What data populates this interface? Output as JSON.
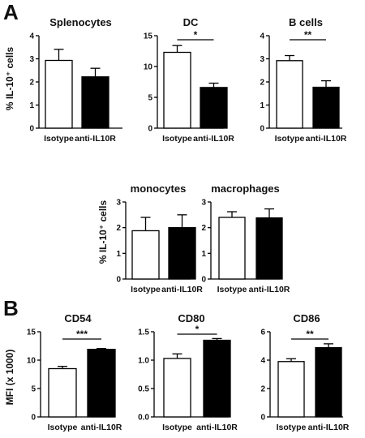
{
  "panel_labels": [
    "A",
    "B"
  ],
  "ylabels": [
    "% IL-10⁺ cells",
    "% IL-10⁺ cells",
    "MFI (x 1000)"
  ],
  "chart_data": [
    {
      "type": "bar",
      "title": "Splenocytes",
      "categories": [
        "Isotype",
        "anti-IL10R"
      ],
      "values": [
        2.93,
        2.22
      ],
      "errors": [
        0.48,
        0.37
      ],
      "ylim": [
        0,
        4
      ],
      "yticks": [
        "0",
        "1",
        "2",
        "3",
        "4"
      ],
      "fills": [
        "#ffffff",
        "#000000"
      ],
      "significance": ""
    },
    {
      "type": "bar",
      "title": "DC",
      "categories": [
        "Isotype",
        "anti-IL10R"
      ],
      "values": [
        12.3,
        6.6
      ],
      "errors": [
        1.1,
        0.7
      ],
      "ylim": [
        0,
        15
      ],
      "yticks": [
        "0",
        "5",
        "10",
        "15"
      ],
      "fills": [
        "#ffffff",
        "#000000"
      ],
      "significance": "*"
    },
    {
      "type": "bar",
      "title": "B cells",
      "categories": [
        "Isotype",
        "anti-IL10R"
      ],
      "values": [
        2.92,
        1.77
      ],
      "errors": [
        0.22,
        0.28
      ],
      "ylim": [
        0,
        4
      ],
      "yticks": [
        "0",
        "1",
        "2",
        "3",
        "4"
      ],
      "fills": [
        "#ffffff",
        "#000000"
      ],
      "significance": "**"
    },
    {
      "type": "bar",
      "title": "monocytes",
      "categories": [
        "Isotype",
        "anti-IL10R"
      ],
      "values": [
        1.88,
        2.0
      ],
      "errors": [
        0.52,
        0.5
      ],
      "ylim": [
        0,
        3
      ],
      "yticks": [
        "0",
        "1",
        "2",
        "3"
      ],
      "fills": [
        "#ffffff",
        "#000000"
      ],
      "significance": ""
    },
    {
      "type": "bar",
      "title": "macrophages",
      "categories": [
        "Isotype",
        "anti-IL10R"
      ],
      "values": [
        2.4,
        2.38
      ],
      "errors": [
        0.22,
        0.35
      ],
      "ylim": [
        0,
        3
      ],
      "yticks": [
        "0",
        "1",
        "2",
        "3"
      ],
      "fills": [
        "#ffffff",
        "#000000"
      ],
      "significance": ""
    },
    {
      "type": "bar",
      "title": "CD54",
      "categories": [
        "Isotype",
        "anti-IL10R"
      ],
      "values": [
        8.5,
        11.9
      ],
      "errors": [
        0.4,
        0.15
      ],
      "ylim": [
        0,
        15
      ],
      "yticks": [
        "0",
        "5",
        "10",
        "15"
      ],
      "fills": [
        "#ffffff",
        "#000000"
      ],
      "significance": "***"
    },
    {
      "type": "bar",
      "title": "CD80",
      "categories": [
        "Isotype",
        "anti-IL10R"
      ],
      "values": [
        1.03,
        1.35
      ],
      "errors": [
        0.08,
        0.03
      ],
      "ylim": [
        0,
        1.5
      ],
      "yticks": [
        "0.0",
        "0.5",
        "1.0",
        "1.5"
      ],
      "fills": [
        "#ffffff",
        "#000000"
      ],
      "significance": "*"
    },
    {
      "type": "bar",
      "title": "CD86",
      "categories": [
        "Isotype",
        "anti-IL10R"
      ],
      "values": [
        3.9,
        4.88
      ],
      "errors": [
        0.2,
        0.27
      ],
      "ylim": [
        0,
        6
      ],
      "yticks": [
        "0",
        "2",
        "4",
        "6"
      ],
      "fills": [
        "#ffffff",
        "#000000"
      ],
      "significance": "**"
    }
  ]
}
